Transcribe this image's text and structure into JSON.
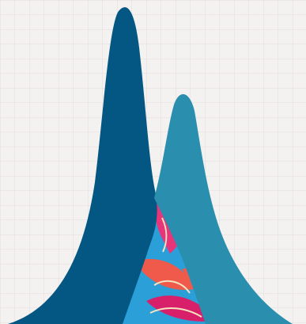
{
  "colors": {
    "paper": "#f4f2f1",
    "grid_minor": "#e3dcdc",
    "grid_major": "#d6cccc",
    "peak_dark": "#055783",
    "peak_light": "#2a8fae",
    "pattern_blue": "#2a9fd8",
    "pattern_pink": "#e8357a",
    "pattern_red": "#ef5a4a",
    "pattern_magenta": "#d8206a"
  },
  "icons": [
    "twin-peaks-graphic",
    "graph-paper-background",
    "floral-pattern-overlap"
  ]
}
